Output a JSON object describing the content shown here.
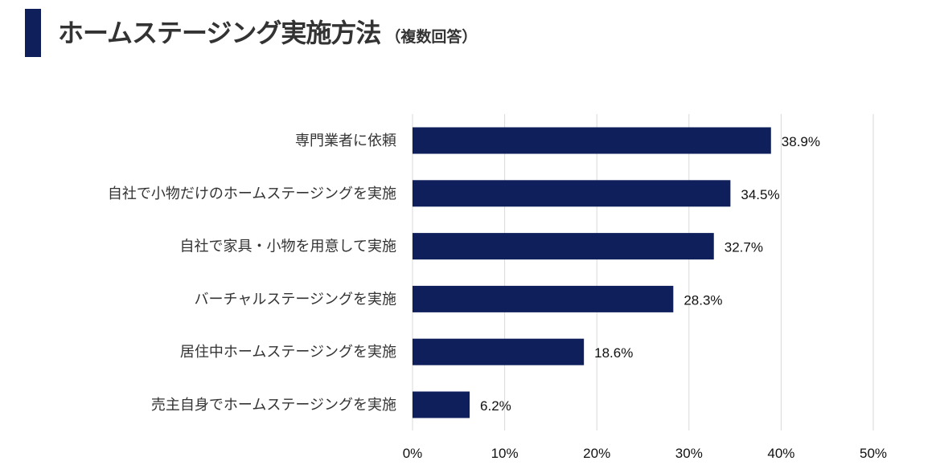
{
  "header": {
    "title": "ホームステージング実施方法",
    "subtitle": "（複数回答）"
  },
  "colors": {
    "bar": "#0f1f5c",
    "accent": "#0f1f5c",
    "grid": "#d9d9d9"
  },
  "chart_data": {
    "type": "bar",
    "orientation": "horizontal",
    "categories": [
      "専門業者に依頼",
      "自社で小物だけのホームステージングを実施",
      "自社で家具・小物を用意して実施",
      "バーチャルステージングを実施",
      "居住中ホームステージングを実施",
      "売主自身でホームステージングを実施"
    ],
    "values": [
      38.9,
      34.5,
      32.7,
      28.3,
      18.6,
      6.2
    ],
    "value_labels": [
      "38.9%",
      "34.5%",
      "32.7%",
      "28.3%",
      "18.6%",
      "6.2%"
    ],
    "xlim": [
      0,
      50
    ],
    "ticks": [
      0,
      10,
      20,
      30,
      40,
      50
    ],
    "tick_labels": [
      "0%",
      "10%",
      "20%",
      "30%",
      "40%",
      "50%"
    ],
    "grid": true,
    "legend": "none"
  }
}
